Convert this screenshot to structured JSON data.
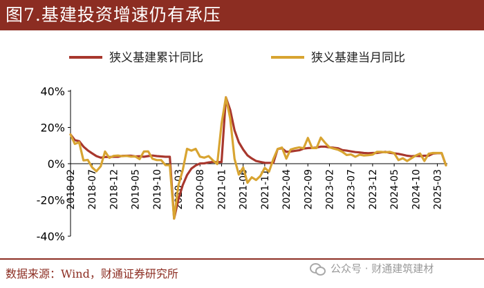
{
  "title": "图7.基建投资增速仍有承压",
  "source": "数据来源：Wind，财通证券研究所",
  "watermark": {
    "icon": "wechat-icon",
    "text": "公众号 · 财通建筑建材"
  },
  "colors": {
    "title_bg": "#8c2d22",
    "cumulative": "#a8372d",
    "monthly": "#d8a431",
    "source_text": "#8c2d22"
  },
  "chart_data": {
    "type": "line",
    "title": "",
    "xlabel": "",
    "ylabel": "",
    "ylim": [
      -40,
      40
    ],
    "yticks": [
      -40,
      -20,
      0,
      20,
      40
    ],
    "ytick_labels": [
      "-40%",
      "-20%",
      "0%",
      "20%",
      "40%"
    ],
    "grid": false,
    "legend": "top",
    "x": [
      "2018-02",
      "2018-03",
      "2018-04",
      "2018-05",
      "2018-06",
      "2018-07",
      "2018-08",
      "2018-09",
      "2018-10",
      "2018-11",
      "2018-12",
      "2019-01",
      "2019-02",
      "2019-03",
      "2019-04",
      "2019-05",
      "2019-06",
      "2019-07",
      "2019-08",
      "2019-09",
      "2019-10",
      "2019-11",
      "2019-12",
      "2020-01",
      "2020-02",
      "2020-03",
      "2020-04",
      "2020-05",
      "2020-06",
      "2020-07",
      "2020-08",
      "2020-09",
      "2020-10",
      "2020-11",
      "2020-12",
      "2021-01",
      "2021-02",
      "2021-03",
      "2021-04",
      "2021-05",
      "2021-06",
      "2021-07",
      "2021-08",
      "2021-09",
      "2021-10",
      "2021-11",
      "2021-12",
      "2022-01",
      "2022-02",
      "2022-03",
      "2022-04",
      "2022-05",
      "2022-06",
      "2022-07",
      "2022-08",
      "2022-09",
      "2022-10",
      "2022-11",
      "2022-12",
      "2023-01",
      "2023-02",
      "2023-03",
      "2023-04",
      "2023-05",
      "2023-06",
      "2023-07",
      "2023-08",
      "2023-09",
      "2023-10",
      "2023-11",
      "2023-12",
      "2024-01",
      "2024-02",
      "2024-03",
      "2024-04",
      "2024-05",
      "2024-06",
      "2024-07",
      "2024-08",
      "2024-09",
      "2024-10",
      "2024-11",
      "2024-12",
      "2025-01",
      "2025-02",
      "2025-03",
      "2025-04",
      "2025-05"
    ],
    "xtick_labels": [
      "2018-02",
      "2018-07",
      "2018-12",
      "2019-05",
      "2019-10",
      "2020-03",
      "2020-08",
      "2021-01",
      "2021-06",
      "2021-11",
      "2022-04",
      "2022-09",
      "2023-02",
      "2023-07",
      "2023-12",
      "2024-05",
      "2024-10",
      "2025-03"
    ],
    "series": [
      {
        "name": "狭义基建累计同比",
        "values": [
          16.1,
          13.0,
          12.4,
          9.4,
          7.3,
          5.7,
          4.2,
          3.3,
          3.7,
          3.7,
          3.8,
          3.8,
          4.3,
          4.4,
          4.4,
          4.0,
          4.1,
          3.8,
          4.2,
          4.5,
          4.2,
          4.0,
          3.8,
          3.8,
          -30.3,
          -19.7,
          -11.8,
          -6.3,
          -2.7,
          -1.0,
          0.1,
          0.2,
          0.7,
          1.0,
          0.9,
          0.9,
          36.6,
          29.7,
          18.4,
          11.8,
          7.8,
          4.6,
          2.9,
          1.5,
          1.0,
          0.5,
          0.4,
          0.4,
          8.1,
          8.5,
          6.5,
          6.7,
          7.1,
          7.4,
          8.3,
          8.6,
          8.7,
          8.9,
          9.4,
          9.4,
          9.0,
          8.8,
          8.5,
          7.5,
          7.2,
          6.8,
          6.4,
          6.2,
          5.9,
          5.8,
          5.9,
          5.9,
          6.3,
          6.5,
          6.0,
          5.7,
          5.4,
          4.9,
          4.4,
          4.1,
          4.3,
          4.2,
          4.4,
          4.4,
          5.6,
          5.8,
          5.8,
          -0.9
        ]
      },
      {
        "name": "狭义基建当月同比",
        "values": [
          16.1,
          10.9,
          11.8,
          1.8,
          2.1,
          -2.0,
          -4.2,
          -1.4,
          6.7,
          3.2,
          4.3,
          4.5,
          4.1,
          4.3,
          3.9,
          4.0,
          2.5,
          6.7,
          6.8,
          2.7,
          2.0,
          2.0,
          -0.8,
          -0.8,
          -30.3,
          -12.0,
          -3.5,
          8.2,
          7.2,
          8.2,
          3.9,
          3.3,
          4.2,
          1.8,
          -0.2,
          22.0,
          36.6,
          25.0,
          2.7,
          -6.0,
          -2.1,
          -10.5,
          -7.5,
          -9.0,
          -6.8,
          -2.3,
          -4.4,
          2.5,
          8.1,
          8.9,
          2.8,
          7.8,
          8.5,
          9.0,
          8.5,
          14.2,
          8.6,
          8.6,
          14.4,
          11.5,
          9.0,
          8.3,
          7.7,
          6.5,
          4.8,
          5.1,
          3.8,
          5.0,
          4.5,
          4.7,
          5.0,
          6.5,
          6.5,
          6.3,
          6.5,
          5.8,
          2.0,
          3.0,
          1.5,
          3.0,
          4.5,
          5.6,
          1.5,
          5.5,
          5.9,
          5.9,
          5.9,
          -0.9
        ]
      }
    ]
  }
}
